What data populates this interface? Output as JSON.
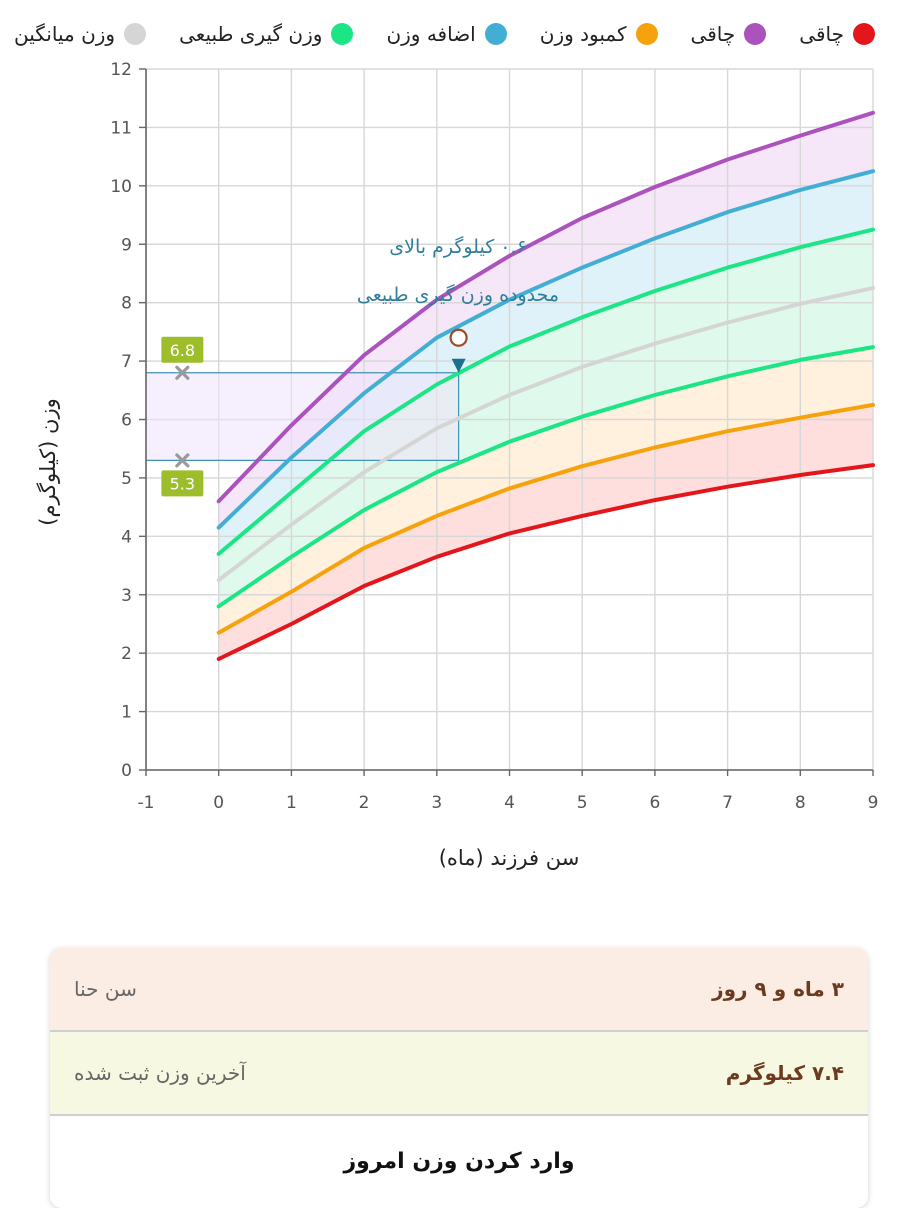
{
  "legend": {
    "items": [
      {
        "label": "چاقی",
        "color": "#e3171b"
      },
      {
        "label": "چاقی",
        "color": "#ab52bd"
      },
      {
        "label": "کمبود وزن",
        "color": "#f6a20c"
      },
      {
        "label": "اضافه وزن",
        "color": "#42aed4"
      },
      {
        "label": "وزن گیری طبیعی",
        "color": "#1ce585"
      },
      {
        "label": "وزن میانگین",
        "color": "#d5d5d5"
      }
    ]
  },
  "chart_data": {
    "type": "area",
    "xlabel": "سن فرزند (ماه)",
    "ylabel": "وزن (کیلوگرم)",
    "xlim": [
      -1,
      9
    ],
    "ylim": [
      0,
      12
    ],
    "x_ticks": [
      -1,
      0,
      1,
      2,
      3,
      4,
      5,
      6,
      7,
      8,
      9
    ],
    "y_ticks": [
      0,
      1,
      2,
      3,
      4,
      5,
      6,
      7,
      8,
      9,
      10,
      11,
      12
    ],
    "grid": true,
    "x": [
      0,
      1,
      2,
      3,
      4,
      5,
      6,
      7,
      8,
      9
    ],
    "curves": [
      {
        "color": "#e3171b",
        "values": [
          1.9,
          2.5,
          3.15,
          3.65,
          4.05,
          4.35,
          4.62,
          4.85,
          5.05,
          5.22
        ]
      },
      {
        "color": "#f6a20c",
        "values": [
          2.35,
          3.05,
          3.8,
          4.35,
          4.82,
          5.2,
          5.52,
          5.8,
          6.03,
          6.25
        ]
      },
      {
        "color": "#1ce585",
        "values": [
          2.8,
          3.65,
          4.45,
          5.1,
          5.62,
          6.05,
          6.42,
          6.74,
          7.02,
          7.24
        ]
      },
      {
        "color": "#d5d5d5",
        "values": [
          3.25,
          4.2,
          5.1,
          5.85,
          6.42,
          6.9,
          7.3,
          7.66,
          7.98,
          8.25
        ]
      },
      {
        "color": "#1ce585",
        "values": [
          3.7,
          4.75,
          5.8,
          6.6,
          7.25,
          7.75,
          8.2,
          8.6,
          8.95,
          9.25
        ]
      },
      {
        "color": "#42aed4",
        "values": [
          4.15,
          5.35,
          6.45,
          7.4,
          8.05,
          8.6,
          9.1,
          9.55,
          9.93,
          10.25
        ]
      },
      {
        "color": "#ab52bd",
        "values": [
          4.6,
          5.9,
          7.1,
          8.05,
          8.8,
          9.45,
          9.98,
          10.45,
          10.86,
          11.25
        ]
      }
    ],
    "bands": [
      {
        "lower": 0,
        "upper": 1,
        "color": "#ffd3d3"
      },
      {
        "lower": 1,
        "upper": 2,
        "color": "#ffecd2"
      },
      {
        "lower": 2,
        "upper": 4,
        "color": "#d4f8e6"
      },
      {
        "lower": 4,
        "upper": 5,
        "color": "#d6eef7"
      },
      {
        "lower": 5,
        "upper": 6,
        "color": "#f1def5"
      }
    ],
    "normal_range": {
      "low": 5.3,
      "high": 6.8,
      "low_label": "5.3",
      "high_label": "6.8",
      "marker_color": "#9dbd2a"
    },
    "current_point": {
      "x": 3.3,
      "y": 7.4
    },
    "annotation": {
      "line1": "۰.۶ کیلوگرم بالای",
      "line2": "محدوده وزن گیری طبیعی"
    }
  },
  "info": {
    "age_label": "سن حنا",
    "age_value": "۳ ماه و ۹ روز",
    "weight_label": "آخرین وزن ثبت شده",
    "weight_value": "۷.۴ کیلوگرم",
    "enter_weight_label": "وارد کردن وزن امروز"
  }
}
